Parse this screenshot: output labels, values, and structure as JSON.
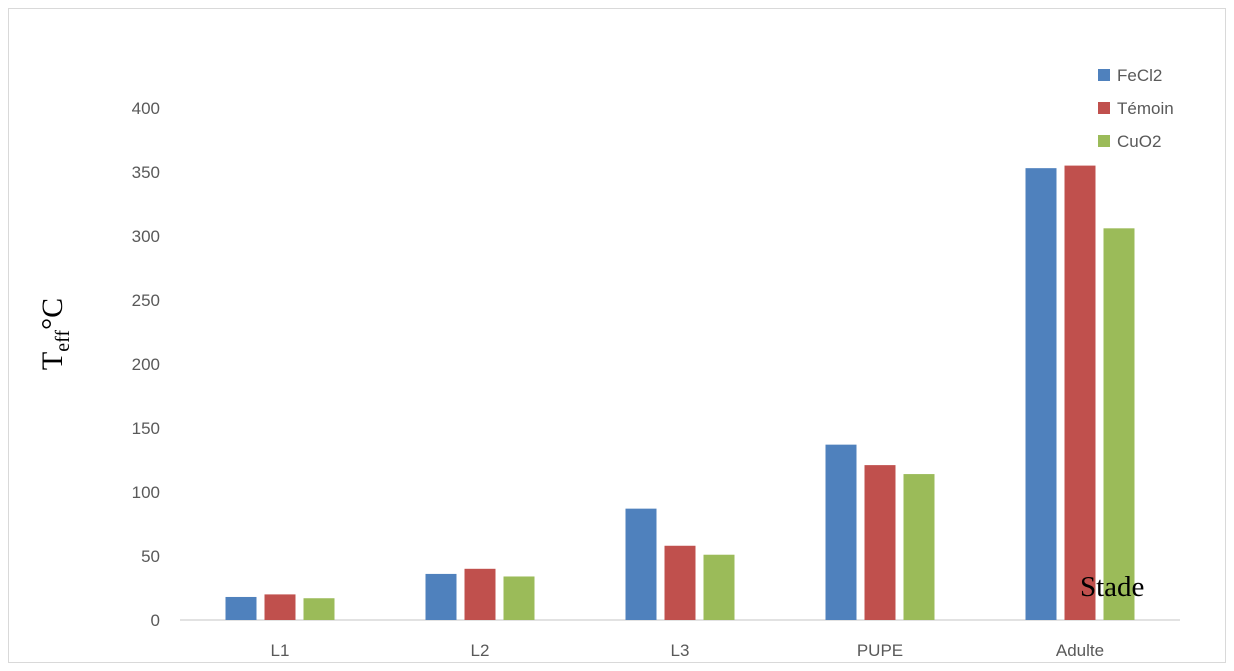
{
  "chart_data": {
    "type": "bar",
    "categories": [
      "L1",
      "L2",
      "L3",
      "PUPE",
      "Adulte"
    ],
    "series": [
      {
        "name": "FeCl2",
        "color": "#4F81BD",
        "values": [
          18,
          36,
          87,
          137,
          353
        ]
      },
      {
        "name": "Témoin",
        "color": "#C0504D",
        "values": [
          20,
          40,
          58,
          121,
          355
        ]
      },
      {
        "name": "CuO2",
        "color": "#9BBB59",
        "values": [
          17,
          34,
          51,
          114,
          306
        ]
      }
    ],
    "ylabel": {
      "main": "T",
      "subscript": "eff",
      "unit": "°C"
    },
    "xlabel": "Stade",
    "ylim": [
      0,
      400
    ],
    "yticks": [
      0,
      50,
      100,
      150,
      200,
      250,
      300,
      350,
      400
    ],
    "grid": false,
    "legend_position": "top-right"
  }
}
